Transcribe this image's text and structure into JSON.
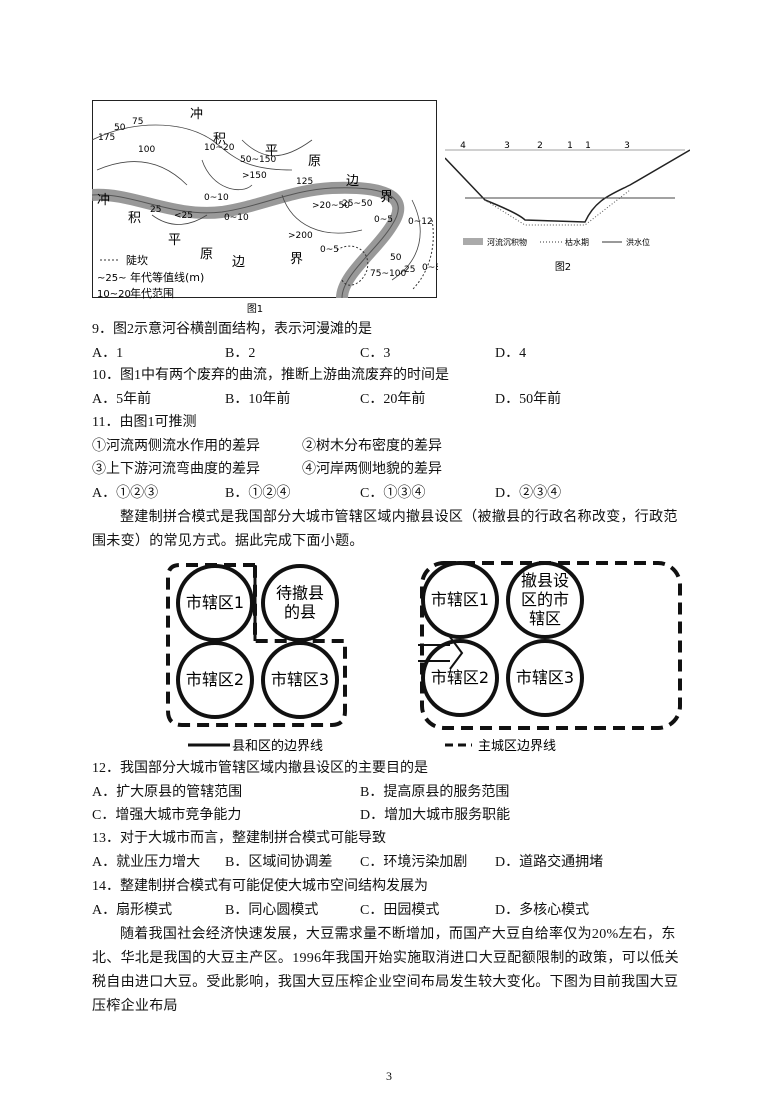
{
  "figure1": {
    "labels": [
      "冲",
      "积",
      "平",
      "原",
      "边",
      "界",
      "冲",
      "积",
      "平",
      "原",
      "边",
      "界",
      "175",
      "50",
      "75",
      "100",
      "10~20",
      "50~150",
      ">150",
      "125",
      "25",
      "<25",
      "0~10",
      "0~10",
      ">20~50",
      "25~50",
      "0~5",
      "0~12",
      ">200",
      "0~5",
      "50",
      "25",
      "0~8",
      "75~100"
    ],
    "legend": [
      {
        "label": "陡坎"
      },
      {
        "symbol": "~25~",
        "label": "年代等值线(m)"
      },
      {
        "symbol": "10~20",
        "label": "年代范围"
      }
    ],
    "caption": "图1"
  },
  "figure2": {
    "widths": [
      "4",
      "3",
      "2",
      "1",
      "1",
      "3"
    ],
    "legend": [
      "河流沉积物",
      "枯水期",
      "洪水位"
    ],
    "caption": "图2"
  },
  "questions": [
    {
      "stem": "9．图2示意河谷横剖面结构，表示河漫滩的是",
      "options": [
        "A．1",
        "B．2",
        "C．3",
        "D．4"
      ]
    },
    {
      "stem": "10．图1中有两个废弃的曲流，推断上游曲流废弃的时间是",
      "options": [
        "A．5年前",
        "B．10年前",
        "C．20年前",
        "D．50年前"
      ]
    },
    {
      "stem": "11．由图1可推测",
      "statements": [
        "①河流两侧流水作用的差异",
        "②树木分布密度的差异",
        "③上下游河流弯曲度的差异",
        "④河岸两侧地貌的差异"
      ],
      "options": [
        "A．①②③",
        "B．①②④",
        "C．①③④",
        "D．②③④"
      ]
    },
    {
      "stem": "12．我国部分大城市管辖区域内撤县设区的主要目的是",
      "options": [
        "A．扩大原县的管辖范围",
        "B．提高原县的服务范围",
        "C．增强大城市竞争能力",
        "D．增加大城市服务职能"
      ]
    },
    {
      "stem": "13．对于大城市而言，整建制拼合模式可能导致",
      "options": [
        "A．就业压力增大",
        "B．区域间协调差",
        "C．环境污染加剧",
        "D．道路交通拥堵"
      ]
    },
    {
      "stem": "14．整建制拼合模式有可能促使大城市空间结构发展为",
      "options": [
        "A．扇形模式",
        "B．同心圆模式",
        "C．田园模式",
        "D．多核心模式"
      ]
    }
  ],
  "paragraphs": [
    "整建制拼合模式是我国部分大城市管辖区域内撤县设区（被撤县的行政名称改变，行政范围未变）的常见方式。据此完成下面小题。",
    "随着我国社会经济快速发展，大豆需求量不断增加，而国产大豆自给率仅为20%左右，东北、华北是我国的大豆主产区。1996年我国开始实施取消进口大豆配额限制的政策，可以低关税自由进口大豆。受此影响，我国大豆压榨企业空间布局发生较大变化。下图为目前我国大豆压榨企业布局"
  ],
  "diagram": {
    "before": [
      {
        "lines": [
          "市辖区1"
        ]
      },
      {
        "lines": [
          "待撤县",
          "的县"
        ]
      },
      {
        "lines": [
          "市辖区2"
        ]
      },
      {
        "lines": [
          "市辖区3"
        ]
      }
    ],
    "after": [
      {
        "lines": [
          "市辖区1"
        ]
      },
      {
        "lines": [
          "撤县设",
          "区的市",
          "辖区"
        ]
      },
      {
        "lines": [
          "市辖区2"
        ]
      },
      {
        "lines": [
          "市辖区3"
        ]
      }
    ],
    "legend": [
      "县和区的边界线",
      "主城区边界线"
    ]
  },
  "page_number": "3"
}
